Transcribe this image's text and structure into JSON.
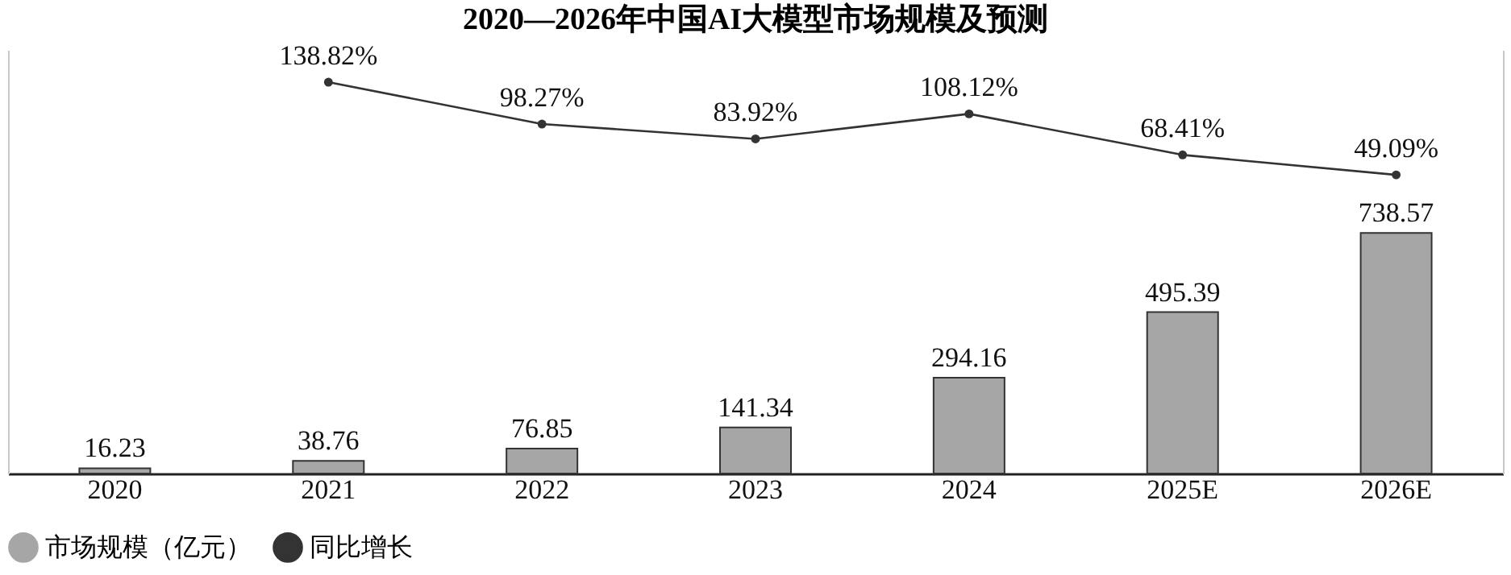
{
  "chart_data": {
    "type": "bar",
    "title": "2020—2026年中国AI大模型市场规模及预测",
    "categories": [
      "2020",
      "2021",
      "2022",
      "2023",
      "2024",
      "2025E",
      "2026E"
    ],
    "series": [
      {
        "name": "市场规模（亿元）",
        "color": "#a6a6a6",
        "values": [
          16.23,
          38.76,
          76.85,
          141.34,
          294.16,
          495.39,
          738.57
        ],
        "value_labels": [
          "16.23",
          "38.76",
          "76.85",
          "141.34",
          "294.16",
          "495.39",
          "738.57"
        ]
      },
      {
        "name": "同比增长",
        "type": "line",
        "axis": "y2",
        "color": "#333333",
        "marker": "circle",
        "values": [
          null,
          138.82,
          98.27,
          83.92,
          108.12,
          68.41,
          49.09
        ],
        "value_labels": [
          null,
          "138.82%",
          "98.27%",
          "83.92%",
          "108.12%",
          "68.41%",
          "49.09%"
        ]
      }
    ],
    "ylim": [
      0,
      1300
    ],
    "y2lim": [
      -240,
      170
    ],
    "tick_labels": "x",
    "legend": "bottom",
    "grid": false
  }
}
